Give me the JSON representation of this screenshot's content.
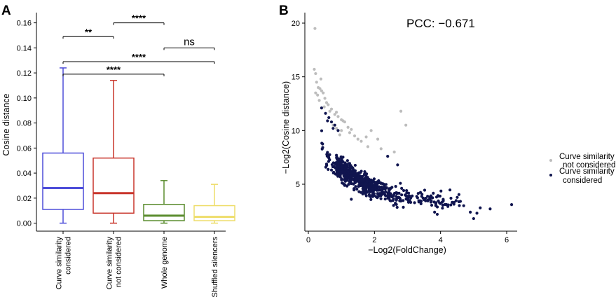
{
  "chart_data": [
    {
      "panel_label": "A",
      "type": "box",
      "ylabel": "Cosine distance",
      "ylim": [
        0,
        0.165
      ],
      "yticks": [
        0.0,
        0.02,
        0.04,
        0.06,
        0.08,
        0.1,
        0.12,
        0.14,
        0.16
      ],
      "ytick_labels": [
        "0.00",
        "0.02",
        "0.04",
        "0.06",
        "0.08",
        "0.10",
        "0.12",
        "0.14",
        "0.16"
      ],
      "categories": [
        [
          "Curve similarity",
          "considered"
        ],
        [
          "Curve similarity",
          "not considered"
        ],
        [
          "Whole genome"
        ],
        [
          "Shuffled silencers"
        ]
      ],
      "boxes": [
        {
          "min": 0.0,
          "q1": 0.011,
          "median": 0.028,
          "q3": 0.056,
          "max": 0.124,
          "color": "#4d4dd9"
        },
        {
          "min": 0.0,
          "q1": 0.008,
          "median": 0.024,
          "q3": 0.052,
          "max": 0.114,
          "color": "#c8352b"
        },
        {
          "min": 0.0,
          "q1": 0.002,
          "median": 0.006,
          "q3": 0.015,
          "max": 0.034,
          "color": "#5a8c2e"
        },
        {
          "min": 0.0,
          "q1": 0.002,
          "median": 0.005,
          "q3": 0.014,
          "max": 0.031,
          "color": "#eedd6a"
        }
      ],
      "significance": [
        {
          "from": 0,
          "to": 1,
          "label": "**",
          "y": 0.149
        },
        {
          "from": 1,
          "to": 2,
          "label": "****",
          "y": 0.16
        },
        {
          "from": 2,
          "to": 3,
          "label": "ns",
          "y": 0.14
        },
        {
          "from": 0,
          "to": 3,
          "label": "****",
          "y": 0.129
        },
        {
          "from": 0,
          "to": 2,
          "label": "****",
          "y": 0.119
        }
      ]
    },
    {
      "panel_label": "B",
      "type": "scatter",
      "annotation": "PCC: −0.671",
      "xlabel": "−Log2(FoldChange)",
      "ylabel": "−Log2(Cosine distance)",
      "xlim": [
        -0.1,
        6.4
      ],
      "ylim": [
        0.9,
        20.6
      ],
      "xticks": [
        0,
        2,
        4,
        6
      ],
      "yticks": [
        5,
        10,
        15,
        20
      ],
      "trend": {
        "a": 3.1,
        "b": 7.0,
        "k": 0.75
      },
      "series": [
        {
          "name": "Curve similarity\nnot considered",
          "legend_lines": [
            "Curve similarity",
            "not considered"
          ],
          "color": "#bdbdbd",
          "points": [
            [
              0.2,
              19.5
            ],
            [
              0.18,
              15.7
            ],
            [
              0.22,
              15.3
            ],
            [
              0.25,
              14.5
            ],
            [
              0.3,
              14.0
            ],
            [
              0.35,
              13.9
            ],
            [
              0.4,
              13.7
            ],
            [
              0.22,
              13.5
            ],
            [
              0.28,
              13.3
            ],
            [
              0.45,
              13.5
            ],
            [
              0.5,
              13.0
            ],
            [
              0.55,
              12.6
            ],
            [
              0.33,
              12.8
            ],
            [
              0.6,
              12.4
            ],
            [
              0.7,
              12.0
            ],
            [
              0.65,
              11.8
            ],
            [
              0.8,
              11.5
            ],
            [
              0.85,
              11.7
            ],
            [
              0.9,
              11.3
            ],
            [
              1.0,
              11.0
            ],
            [
              1.1,
              10.8
            ],
            [
              0.75,
              10.5
            ],
            [
              1.2,
              10.3
            ],
            [
              1.3,
              10.1
            ],
            [
              1.0,
              10.0
            ],
            [
              0.95,
              9.6
            ],
            [
              1.4,
              9.5
            ],
            [
              1.5,
              9.2
            ],
            [
              1.6,
              9.0
            ],
            [
              1.8,
              8.5
            ],
            [
              1.9,
              10.0
            ],
            [
              2.1,
              9.2
            ],
            [
              2.2,
              8.3
            ],
            [
              2.6,
              8.0
            ],
            [
              2.8,
              11.8
            ],
            [
              2.95,
              10.5
            ],
            [
              1.25,
              9.8
            ],
            [
              1.05,
              10.9
            ],
            [
              0.48,
              12.2
            ],
            [
              0.62,
              11.2
            ],
            [
              1.75,
              9.4
            ],
            [
              0.38,
              14.8
            ],
            [
              0.85,
              10.2
            ]
          ]
        },
        {
          "name": "Curve similarity\nconsidered",
          "legend_lines": [
            "Curve similarity",
            "considered"
          ],
          "color": "#10154f",
          "generated_count": 660,
          "spread_x": [
            0.4,
            4.6
          ],
          "outliers": [
            [
              0.4,
              12.1
            ],
            [
              0.52,
              11.6
            ],
            [
              0.62,
              11.2
            ],
            [
              0.7,
              10.8
            ],
            [
              0.8,
              10.5
            ],
            [
              0.58,
              10.9
            ],
            [
              0.75,
              10.2
            ],
            [
              0.9,
              10.0
            ],
            [
              4.7,
              3.0
            ],
            [
              4.9,
              2.4
            ],
            [
              5.1,
              2.3
            ],
            [
              5.2,
              2.8
            ],
            [
              5.5,
              2.7
            ],
            [
              6.15,
              3.1
            ],
            [
              5.0,
              1.8
            ],
            [
              4.6,
              3.4
            ],
            [
              3.9,
              2.2
            ],
            [
              1.3,
              3.6
            ],
            [
              2.4,
              7.6
            ],
            [
              2.7,
              6.8
            ]
          ]
        }
      ]
    }
  ]
}
